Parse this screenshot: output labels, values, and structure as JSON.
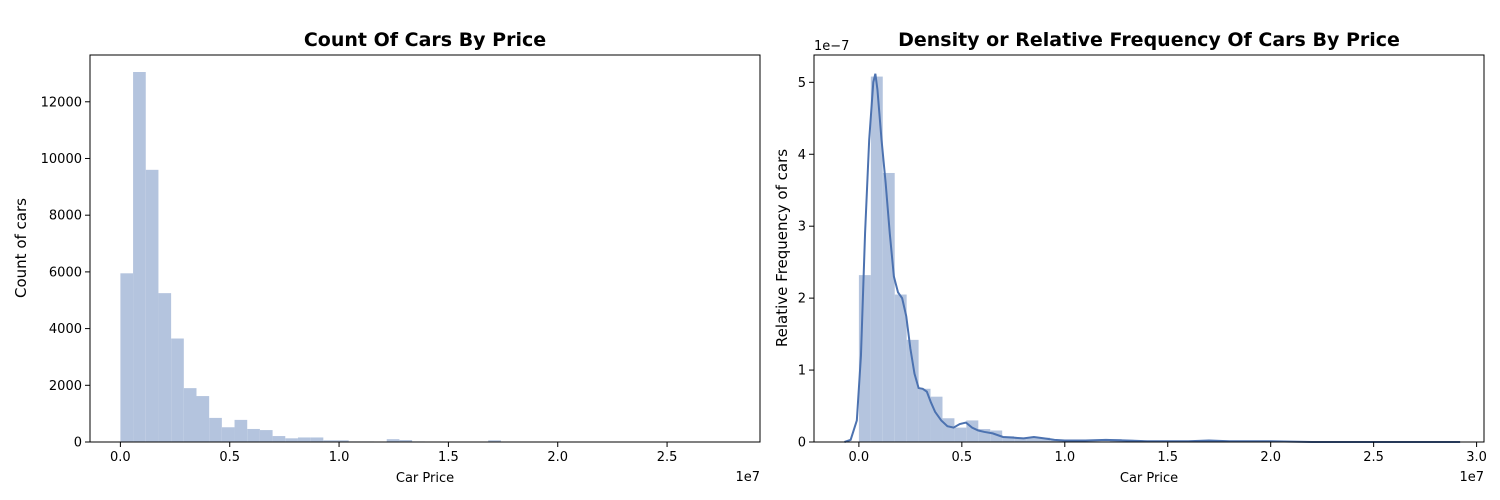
{
  "chart_data": [
    {
      "type": "bar",
      "title": "Count Of Cars By Price",
      "xlabel": "Car Price",
      "ylabel": "Count of cars",
      "x_offset_label": "1e7",
      "xlim": [
        -1390000,
        29250000
      ],
      "ylim": [
        0,
        13650
      ],
      "x_ticks": [
        0,
        5000000,
        10000000,
        15000000,
        20000000,
        25000000
      ],
      "x_tick_labels": [
        "0.0",
        "0.5",
        "1.0",
        "1.5",
        "2.0",
        "2.5"
      ],
      "y_ticks": [
        0,
        2000,
        4000,
        6000,
        8000,
        10000,
        12000
      ],
      "y_tick_labels": [
        "0",
        "2000",
        "4000",
        "6000",
        "8000",
        "10000",
        "12000"
      ],
      "bar_color": "#b4c4de",
      "bin_width": 580000,
      "bin_starts": [
        0,
        580000,
        1160000,
        1740000,
        2320000,
        2900000,
        3480000,
        4060000,
        4640000,
        5220000,
        5800000,
        6380000,
        6960000,
        7540000,
        8120000,
        8700000,
        9280000,
        9860000,
        10440000,
        11020000,
        11600000,
        12180000,
        12760000,
        13340000,
        13920000,
        14500000,
        15080000,
        15660000,
        16240000,
        16820000,
        17400000,
        17980000,
        18560000
      ],
      "values": [
        5950,
        13050,
        9600,
        5250,
        3650,
        1900,
        1620,
        850,
        520,
        780,
        460,
        420,
        210,
        130,
        160,
        160,
        60,
        60,
        20,
        20,
        15,
        100,
        70,
        20,
        15,
        15,
        10,
        10,
        10,
        60,
        10,
        10,
        5
      ]
    },
    {
      "type": "bar",
      "title": "Density or Relative Frequency Of Cars By Price",
      "xlabel": "Car Price",
      "ylabel": "Relative Frequency of cars",
      "x_offset_label": "1e7",
      "y_offset_label": "1e−7",
      "xlim": [
        -2180000,
        30360000
      ],
      "ylim": [
        0,
        5.38
      ],
      "x_ticks": [
        0,
        5000000,
        10000000,
        15000000,
        20000000,
        25000000,
        30000000
      ],
      "x_tick_labels": [
        "0.0",
        "0.5",
        "1.0",
        "1.5",
        "2.0",
        "2.5",
        "3.0"
      ],
      "y_ticks": [
        0,
        1,
        2,
        3,
        4,
        5
      ],
      "y_tick_labels": [
        "0",
        "1",
        "2",
        "3",
        "4",
        "5"
      ],
      "bar_color": "#b4c4de",
      "line_color": "#4c72b0",
      "bin_width": 580000,
      "bin_starts": [
        0,
        580000,
        1160000,
        1740000,
        2320000,
        2900000,
        3480000,
        4060000,
        4640000,
        5220000,
        5800000,
        6380000,
        6960000,
        7540000,
        8120000,
        8700000,
        9280000,
        9860000,
        10440000,
        11020000,
        11600000,
        12180000,
        12760000,
        13340000,
        13920000,
        14500000,
        15080000,
        15660000,
        16240000,
        16820000,
        17400000,
        17980000,
        18560000
      ],
      "values": [
        2.32,
        5.08,
        3.74,
        2.05,
        1.42,
        0.74,
        0.63,
        0.33,
        0.2,
        0.3,
        0.18,
        0.16,
        0.08,
        0.05,
        0.06,
        0.06,
        0.02,
        0.02,
        0.01,
        0.01,
        0.01,
        0.04,
        0.03,
        0.01,
        0.01,
        0.01,
        0.0,
        0.0,
        0.0,
        0.02,
        0.0,
        0.0,
        0.0
      ],
      "kde": {
        "x": [
          -700000,
          -400000,
          -100000,
          100000,
          300000,
          500000,
          700000,
          800000,
          900000,
          1000000,
          1100000,
          1300000,
          1500000,
          1700000,
          1900000,
          2100000,
          2300000,
          2500000,
          2700000,
          2900000,
          3100000,
          3300000,
          3500000,
          3700000,
          4000000,
          4300000,
          4600000,
          4900000,
          5200000,
          5500000,
          5800000,
          6100000,
          6500000,
          7000000,
          7500000,
          8000000,
          8500000,
          9000000,
          9500000,
          10000000,
          11000000,
          12000000,
          13000000,
          14000000,
          15000000,
          16000000,
          17000000,
          18000000,
          19000000,
          20000000,
          22000000,
          24000000,
          26000000,
          28000000,
          29200000
        ],
        "y": [
          0.0,
          0.03,
          0.3,
          1.2,
          2.9,
          4.2,
          5.0,
          5.12,
          4.9,
          4.55,
          4.2,
          3.6,
          2.9,
          2.3,
          2.08,
          2.0,
          1.75,
          1.3,
          0.95,
          0.75,
          0.74,
          0.7,
          0.55,
          0.42,
          0.3,
          0.22,
          0.2,
          0.25,
          0.27,
          0.2,
          0.16,
          0.14,
          0.12,
          0.07,
          0.06,
          0.05,
          0.07,
          0.05,
          0.03,
          0.02,
          0.02,
          0.03,
          0.02,
          0.01,
          0.01,
          0.01,
          0.02,
          0.01,
          0.01,
          0.01,
          0.0,
          0.0,
          0.0,
          0.0,
          0.0
        ]
      }
    }
  ]
}
